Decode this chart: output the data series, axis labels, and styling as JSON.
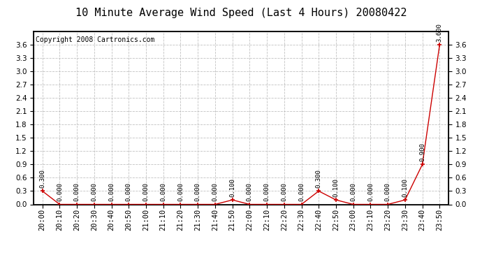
{
  "title": "10 Minute Average Wind Speed (Last 4 Hours) 20080422",
  "copyright": "Copyright 2008 Cartronics.com",
  "x_labels": [
    "20:00",
    "20:10",
    "20:20",
    "20:30",
    "20:40",
    "20:50",
    "21:00",
    "21:10",
    "21:20",
    "21:30",
    "21:40",
    "21:50",
    "22:00",
    "22:10",
    "22:20",
    "22:30",
    "22:40",
    "22:50",
    "23:00",
    "23:10",
    "23:20",
    "23:30",
    "23:40",
    "23:50"
  ],
  "y_values": [
    0.3,
    0.0,
    0.0,
    0.0,
    0.0,
    0.0,
    0.0,
    0.0,
    0.0,
    0.0,
    0.0,
    0.1,
    0.0,
    0.0,
    0.0,
    0.0,
    0.3,
    0.1,
    0.0,
    0.0,
    0.0,
    0.1,
    0.9,
    3.6
  ],
  "point_labels": [
    "0.300",
    "0.000",
    "0.000",
    "0.000",
    "0.000",
    "0.000",
    "0.000",
    "0.000",
    "0.000",
    "0.000",
    "0.000",
    "0.100",
    "0.000",
    "0.000",
    "0.000",
    "0.000",
    "0.300",
    "0.100",
    "0.000",
    "0.000",
    "0.000",
    "0.100",
    "0.900",
    "3.600"
  ],
  "ylim": [
    0.0,
    3.9
  ],
  "yticks": [
    0.0,
    0.3,
    0.6,
    0.9,
    1.2,
    1.5,
    1.8,
    2.1,
    2.4,
    2.7,
    3.0,
    3.3,
    3.6
  ],
  "line_color": "#cc0000",
  "marker_color": "#cc0000",
  "bg_color": "#ffffff",
  "grid_color": "#bbbbbb",
  "title_fontsize": 11,
  "copyright_fontsize": 7,
  "label_fontsize": 6.5,
  "tick_fontsize": 7.5
}
